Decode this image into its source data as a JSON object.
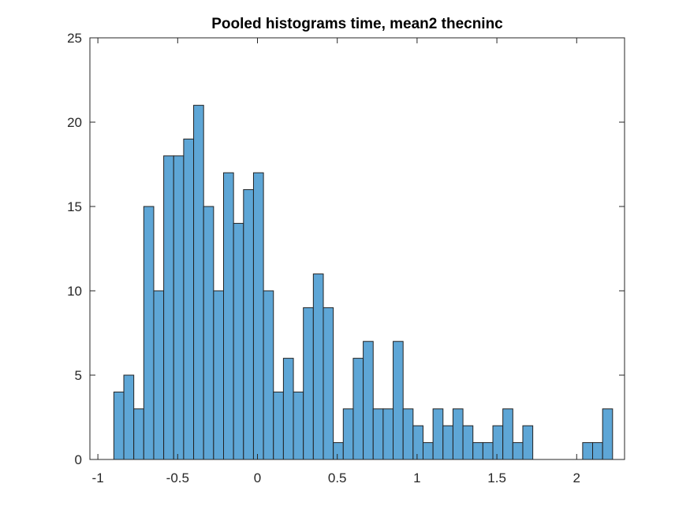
{
  "chart_data": {
    "type": "histogram",
    "title": "Pooled histograms time, mean2 thecninc",
    "xlabel": "",
    "ylabel": "",
    "xlim": [
      -1.05,
      2.3
    ],
    "ylim": [
      0,
      25
    ],
    "bin_start": -0.9,
    "bin_width": 0.0625,
    "counts": [
      4,
      5,
      3,
      15,
      10,
      18,
      18,
      19,
      21,
      15,
      10,
      17,
      14,
      16,
      17,
      10,
      4,
      6,
      4,
      9,
      11,
      9,
      1,
      3,
      6,
      7,
      3,
      3,
      7,
      3,
      2,
      1,
      3,
      2,
      3,
      2,
      1,
      1,
      2,
      3,
      1,
      2,
      0,
      0,
      0,
      0,
      0,
      1,
      1,
      3
    ],
    "xticks": [
      -1,
      -0.5,
      0,
      0.5,
      1,
      1.5,
      2
    ],
    "xtick_labels": [
      "-1",
      "-0.5",
      "0",
      "0.5",
      "1",
      "1.5",
      "2"
    ],
    "yticks": [
      0,
      5,
      10,
      15,
      20,
      25
    ],
    "ytick_labels": [
      "0",
      "5",
      "10",
      "15",
      "20",
      "25"
    ],
    "bar_color": "#5ea6d6",
    "edge_color": "#222222"
  }
}
